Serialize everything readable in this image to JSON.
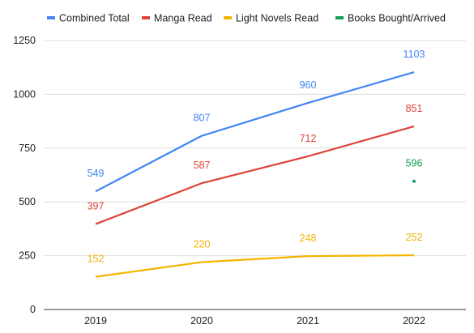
{
  "chart_data": {
    "type": "line",
    "title": "",
    "xlabel": "",
    "ylabel": "",
    "categories": [
      "2019",
      "2020",
      "2021",
      "2022"
    ],
    "ylim": [
      0,
      1250
    ],
    "yticks": [
      0,
      250,
      500,
      750,
      1000,
      1250
    ],
    "grid": true,
    "legend_position": "top",
    "series": [
      {
        "name": "Combined Total",
        "color": "#4285f4",
        "values": [
          549,
          807,
          960,
          1103
        ],
        "labels": [
          "549",
          "807",
          "960",
          "1103"
        ],
        "style": "line"
      },
      {
        "name": "Manga Read",
        "color": "#db4437",
        "values": [
          397,
          587,
          712,
          851
        ],
        "labels": [
          "397",
          "587",
          "712",
          "851"
        ],
        "style": "line"
      },
      {
        "name": "Light Novels Read",
        "color": "#f4b400",
        "values": [
          152,
          220,
          248,
          252
        ],
        "labels": [
          "152",
          "220",
          "248",
          "252"
        ],
        "style": "line"
      },
      {
        "name": "Books Bought/Arrived",
        "color": "#0f9d58",
        "values": [
          null,
          null,
          null,
          596
        ],
        "labels": [
          "",
          "",
          "",
          "596"
        ],
        "style": "point"
      }
    ]
  }
}
